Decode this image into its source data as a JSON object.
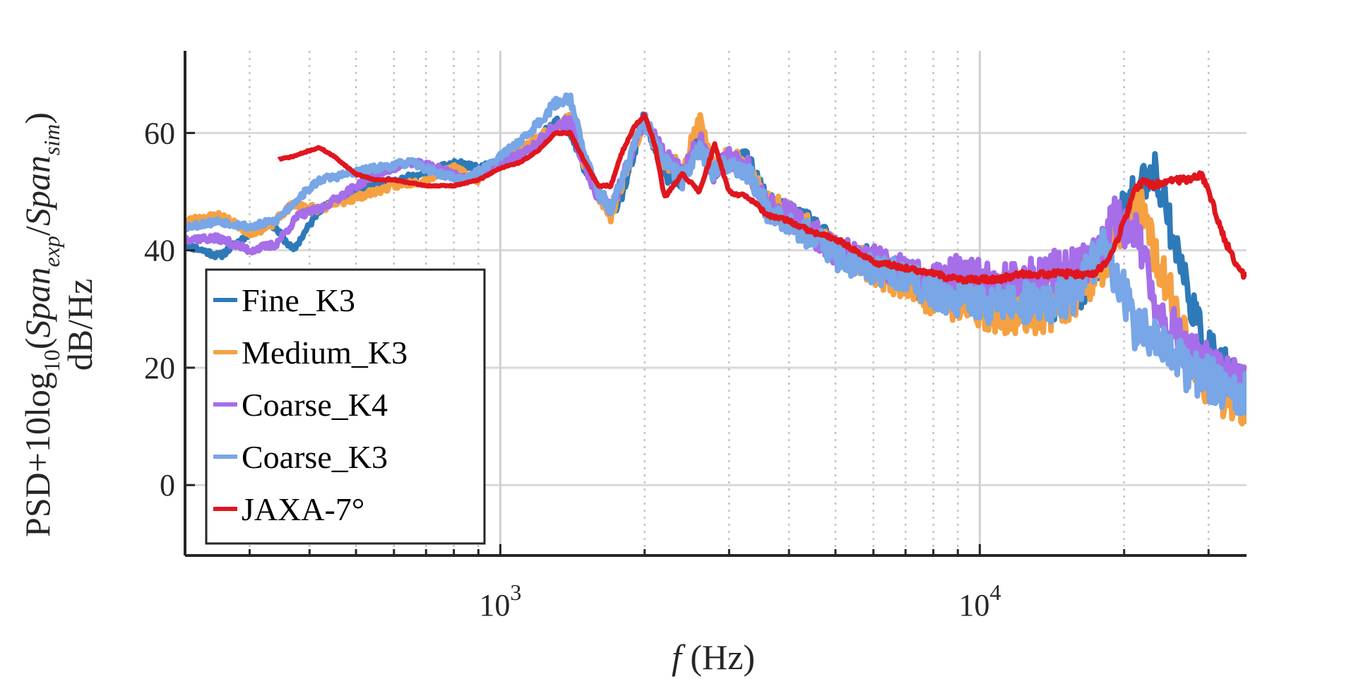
{
  "chart_data": {
    "type": "line",
    "title": "",
    "xlabel_italic": "f",
    "xlabel_rest": " (Hz)",
    "ylabel_parts": {
      "base": "PSD+10log",
      "sub": "10",
      "open": "(",
      "span1": "Span",
      "span1_sub": "exp",
      "slash": "/",
      "span2": "Span",
      "span2_sub": "sim",
      "close": ")",
      "line2": "dB/Hz"
    },
    "xscale": "log",
    "xlim": [
      220,
      36000
    ],
    "ylim": [
      -12,
      74
    ],
    "yticks": [
      0,
      20,
      40,
      60
    ],
    "xticks": [
      {
        "base": "10",
        "exp": "3",
        "value": 1000
      },
      {
        "base": "10",
        "exp": "4",
        "value": 10000
      }
    ],
    "grid": true,
    "legend_position": "center-left",
    "series": [
      {
        "name": "Fine_K3",
        "color": "#2e7ab9",
        "width": 8,
        "noise": 3.5,
        "seed": 11,
        "x": [
          220,
          260,
          300,
          330,
          370,
          420,
          500,
          600,
          700,
          800,
          900,
          1000,
          1150,
          1300,
          1400,
          1500,
          1600,
          1700,
          1800,
          1900,
          2000,
          2200,
          2400,
          2600,
          2800,
          3000,
          3300,
          3600,
          4000,
          4500,
          5000,
          6000,
          7000,
          8000,
          9000,
          10000,
          12000,
          14000,
          16000,
          18000,
          20000,
          22000,
          23000,
          24000,
          25000,
          27000,
          29000,
          31000,
          33000,
          36000
        ],
        "y": [
          41,
          39,
          43,
          45,
          40,
          47,
          50,
          52,
          53,
          55,
          54,
          55,
          57,
          62,
          60,
          54,
          50,
          46,
          50,
          56,
          63,
          53,
          52,
          60,
          53,
          56,
          55,
          48,
          46,
          44,
          40,
          38,
          35,
          33,
          33,
          31,
          30,
          31,
          33,
          38,
          47,
          52,
          54,
          50,
          44,
          34,
          25,
          22,
          19,
          16
        ]
      },
      {
        "name": "Medium_K3",
        "color": "#f5a142",
        "width": 8,
        "noise": 4,
        "seed": 23,
        "x": [
          220,
          260,
          300,
          330,
          370,
          420,
          500,
          600,
          700,
          800,
          900,
          1000,
          1150,
          1300,
          1400,
          1500,
          1600,
          1700,
          1800,
          1900,
          2000,
          2200,
          2400,
          2600,
          2800,
          3000,
          3300,
          3600,
          4000,
          4500,
          5000,
          6000,
          7000,
          8000,
          9000,
          10000,
          12000,
          14000,
          16000,
          18000,
          20000,
          21000,
          22000,
          23000,
          25000,
          27000,
          29000,
          31000,
          33000,
          36000
        ],
        "y": [
          45,
          46,
          43,
          44,
          48,
          47,
          49,
          51,
          52,
          54,
          52,
          56,
          58,
          61,
          63,
          54,
          49,
          46,
          52,
          58,
          62,
          55,
          54,
          62,
          53,
          56,
          54,
          48,
          46,
          43,
          40,
          37,
          34,
          32,
          31,
          30,
          29,
          30,
          33,
          38,
          44,
          47,
          46,
          40,
          32,
          24,
          19,
          16,
          15,
          13
        ]
      },
      {
        "name": "Coarse_K4",
        "color": "#a66ee8",
        "width": 8,
        "noise": 4,
        "seed": 37,
        "x": [
          220,
          260,
          300,
          340,
          380,
          420,
          480,
          550,
          650,
          750,
          850,
          1000,
          1150,
          1300,
          1400,
          1500,
          1600,
          1700,
          1800,
          1900,
          2000,
          2200,
          2400,
          2600,
          2800,
          3000,
          3300,
          3600,
          4000,
          4500,
          5000,
          6000,
          7000,
          8000,
          9000,
          10000,
          12000,
          14000,
          16000,
          18000,
          19000,
          21000,
          22000,
          23000,
          25000,
          27000,
          29000,
          31000,
          33000,
          36000
        ],
        "y": [
          42,
          42,
          40,
          41,
          46,
          47,
          50,
          53,
          55,
          54,
          52,
          55,
          57,
          61,
          62,
          54,
          49,
          47,
          52,
          58,
          62,
          56,
          53,
          59,
          53,
          56,
          54,
          48,
          46,
          43,
          40,
          38,
          36,
          35,
          36,
          35,
          35,
          36,
          37,
          40,
          45,
          44,
          38,
          32,
          27,
          23,
          21,
          19,
          18,
          17
        ]
      },
      {
        "name": "Coarse_K3",
        "color": "#78a6e6",
        "width": 8,
        "noise": 4,
        "seed": 53,
        "x": [
          220,
          260,
          300,
          340,
          380,
          420,
          480,
          550,
          650,
          750,
          850,
          1000,
          1150,
          1300,
          1400,
          1500,
          1600,
          1700,
          1800,
          1900,
          2000,
          2200,
          2400,
          2600,
          2800,
          3000,
          3300,
          3600,
          4000,
          4500,
          5000,
          6000,
          7000,
          8000,
          9000,
          10000,
          12000,
          14000,
          16000,
          17000,
          18000,
          19000,
          20000,
          21000,
          23000,
          25000,
          27000,
          30000,
          33000,
          36000
        ],
        "y": [
          44,
          45,
          44,
          45,
          49,
          52,
          53,
          54,
          55,
          53,
          52,
          56,
          60,
          65,
          66,
          56,
          50,
          47,
          52,
          58,
          62,
          55,
          52,
          58,
          53,
          55,
          53,
          47,
          45,
          42,
          39,
          37,
          35,
          33,
          32,
          31,
          31,
          31,
          33,
          38,
          40,
          37,
          33,
          27,
          25,
          22,
          20,
          18,
          16,
          15
        ]
      },
      {
        "name": "JAXA-7°",
        "color": "#e0161e",
        "width": 7,
        "noise": 0.6,
        "seed": 71,
        "x": [
          345,
          370,
          400,
          420,
          450,
          500,
          550,
          600,
          700,
          800,
          900,
          1000,
          1100,
          1200,
          1300,
          1400,
          1500,
          1600,
          1700,
          1800,
          1900,
          2000,
          2100,
          2200,
          2400,
          2600,
          2800,
          3000,
          3300,
          3600,
          4000,
          4500,
          5000,
          5500,
          6000,
          7000,
          8000,
          9000,
          10000,
          11000,
          12000,
          14000,
          16000,
          17000,
          18000,
          19000,
          20000,
          21000,
          22000,
          23000,
          25000,
          27000,
          29000,
          30000,
          32000,
          34000,
          35000,
          36000
        ],
        "y": [
          55.5,
          56,
          57,
          57.5,
          56,
          53,
          52,
          52,
          51,
          51,
          52,
          54,
          55,
          57,
          60,
          60,
          55,
          51,
          51,
          57,
          61,
          63,
          58,
          49,
          53,
          50,
          58,
          50,
          49,
          46,
          45,
          43,
          42,
          40,
          38,
          37,
          36,
          35,
          35,
          35,
          36,
          36,
          36,
          36,
          37,
          40,
          45,
          50,
          52,
          51,
          52,
          52,
          53,
          50,
          43,
          38,
          36,
          36
        ]
      }
    ]
  }
}
